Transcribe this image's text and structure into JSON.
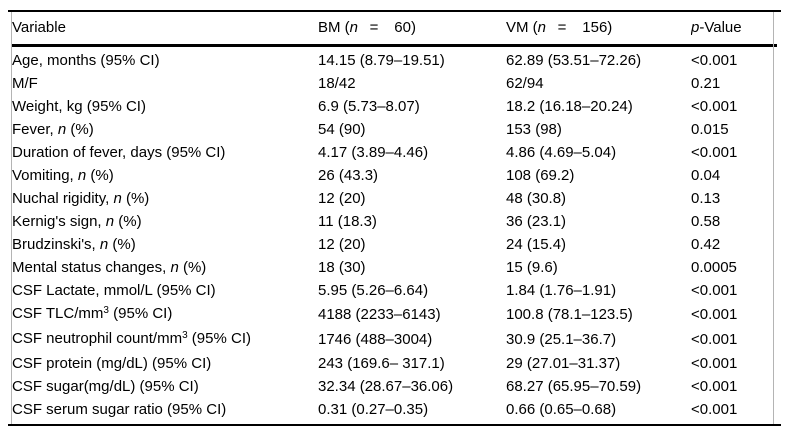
{
  "table": {
    "description": "Comparison table of clinical variables between BM and VM groups",
    "columns": [
      {
        "name": "variable",
        "segments": [
          [
            "Variable",
            ""
          ]
        ]
      },
      {
        "name": "bm-group",
        "segments": [
          [
            "BM (",
            ""
          ],
          [
            "n",
            "i"
          ],
          [
            "  =   60)",
            ""
          ]
        ]
      },
      {
        "name": "vm-group",
        "segments": [
          [
            "VM (",
            ""
          ],
          [
            "n",
            "i"
          ],
          [
            "  =   156)",
            ""
          ]
        ]
      },
      {
        "name": "p-value",
        "segments": [
          [
            "p",
            "i"
          ],
          [
            "-Value",
            ""
          ]
        ]
      }
    ],
    "rows": [
      {
        "cells": [
          [
            [
              "Age, months (95% CI)",
              ""
            ]
          ],
          [
            [
              "14.15 (8.79–19.51)",
              ""
            ]
          ],
          [
            [
              "62.89 (53.51–72.26)",
              ""
            ]
          ],
          [
            [
              "<0.001",
              ""
            ]
          ]
        ]
      },
      {
        "cells": [
          [
            [
              "M/F",
              ""
            ]
          ],
          [
            [
              "18/42",
              ""
            ]
          ],
          [
            [
              "62/94",
              ""
            ]
          ],
          [
            [
              "0.21",
              ""
            ]
          ]
        ]
      },
      {
        "cells": [
          [
            [
              "Weight, kg (95% CI)",
              ""
            ]
          ],
          [
            [
              "6.9 (5.73–8.07)",
              ""
            ]
          ],
          [
            [
              "18.2 (16.18–20.24)",
              ""
            ]
          ],
          [
            [
              "<0.001",
              ""
            ]
          ]
        ]
      },
      {
        "cells": [
          [
            [
              "Fever, ",
              ""
            ],
            [
              "n",
              "i"
            ],
            [
              " (%)",
              ""
            ]
          ],
          [
            [
              "54 (90)",
              ""
            ]
          ],
          [
            [
              "153 (98)",
              ""
            ]
          ],
          [
            [
              "0.015",
              ""
            ]
          ]
        ]
      },
      {
        "cells": [
          [
            [
              "Duration of fever, days (95% CI)",
              ""
            ]
          ],
          [
            [
              "4.17 (3.89–4.46)",
              ""
            ]
          ],
          [
            [
              "4.86 (4.69–5.04)",
              ""
            ]
          ],
          [
            [
              "<0.001",
              ""
            ]
          ]
        ]
      },
      {
        "cells": [
          [
            [
              "Vomiting, ",
              ""
            ],
            [
              "n",
              "i"
            ],
            [
              " (%)",
              ""
            ]
          ],
          [
            [
              "26 (43.3)",
              ""
            ]
          ],
          [
            [
              "108 (69.2)",
              ""
            ]
          ],
          [
            [
              "0.04",
              ""
            ]
          ]
        ]
      },
      {
        "cells": [
          [
            [
              "Nuchal rigidity, ",
              ""
            ],
            [
              "n",
              "i"
            ],
            [
              " (%)",
              ""
            ]
          ],
          [
            [
              "12 (20)",
              ""
            ]
          ],
          [
            [
              "48 (30.8)",
              ""
            ]
          ],
          [
            [
              "0.13",
              ""
            ]
          ]
        ]
      },
      {
        "cells": [
          [
            [
              "Kernig's sign, ",
              ""
            ],
            [
              "n",
              "i"
            ],
            [
              " (%)",
              ""
            ]
          ],
          [
            [
              "11 (18.3)",
              ""
            ]
          ],
          [
            [
              "36 (23.1)",
              ""
            ]
          ],
          [
            [
              "0.58",
              ""
            ]
          ]
        ]
      },
      {
        "cells": [
          [
            [
              "Brudzinski's, ",
              ""
            ],
            [
              "n",
              "i"
            ],
            [
              " (%)",
              ""
            ]
          ],
          [
            [
              "12 (20)",
              ""
            ]
          ],
          [
            [
              "24 (15.4)",
              ""
            ]
          ],
          [
            [
              "0.42",
              ""
            ]
          ]
        ]
      },
      {
        "cells": [
          [
            [
              "Mental status changes, ",
              ""
            ],
            [
              "n",
              "i"
            ],
            [
              " (%)",
              ""
            ]
          ],
          [
            [
              "18 (30)",
              ""
            ]
          ],
          [
            [
              "15 (9.6)",
              ""
            ]
          ],
          [
            [
              "0.0005",
              ""
            ]
          ]
        ]
      },
      {
        "cells": [
          [
            [
              "CSF Lactate, mmol/L (95% CI)",
              ""
            ]
          ],
          [
            [
              "5.95 (5.26–6.64)",
              ""
            ]
          ],
          [
            [
              "1.84 (1.76–1.91)",
              ""
            ]
          ],
          [
            [
              "<0.001",
              ""
            ]
          ]
        ]
      },
      {
        "cells": [
          [
            [
              "CSF TLC/mm",
              ""
            ],
            [
              "3",
              "sup"
            ],
            [
              " (95% CI)",
              ""
            ]
          ],
          [
            [
              "4188 (2233–6143)",
              ""
            ]
          ],
          [
            [
              "100.8 (78.1–123.5)",
              ""
            ]
          ],
          [
            [
              "<0.001",
              ""
            ]
          ]
        ]
      },
      {
        "cells": [
          [
            [
              "CSF neutrophil count/mm",
              ""
            ],
            [
              "3",
              "sup"
            ],
            [
              " (95% CI)",
              ""
            ]
          ],
          [
            [
              "1746 (488–3004)",
              ""
            ]
          ],
          [
            [
              "30.9 (25.1–36.7)",
              ""
            ]
          ],
          [
            [
              "<0.001",
              ""
            ]
          ]
        ]
      },
      {
        "cells": [
          [
            [
              "CSF protein (mg/dL) (95% CI)",
              ""
            ]
          ],
          [
            [
              "243 (169.6– 317.1)",
              ""
            ]
          ],
          [
            [
              "29 (27.01–31.37)",
              ""
            ]
          ],
          [
            [
              "<0.001",
              ""
            ]
          ]
        ]
      },
      {
        "cells": [
          [
            [
              "CSF sugar(mg/dL) (95% CI)",
              ""
            ]
          ],
          [
            [
              "32.34 (28.67–36.06)",
              ""
            ]
          ],
          [
            [
              "68.27 (65.95–70.59)",
              ""
            ]
          ],
          [
            [
              "<0.001",
              ""
            ]
          ]
        ]
      },
      {
        "cells": [
          [
            [
              "CSF serum sugar ratio (95% CI)",
              ""
            ]
          ],
          [
            [
              "0.31 (0.27–0.35)",
              ""
            ]
          ],
          [
            [
              "0.66 (0.65–0.68)",
              ""
            ]
          ],
          [
            [
              "<0.001",
              ""
            ]
          ]
        ]
      }
    ],
    "colors": {
      "rule": "#000000",
      "side_border": "#b4b4b4",
      "text": "#000000",
      "background": "#ffffff"
    }
  }
}
